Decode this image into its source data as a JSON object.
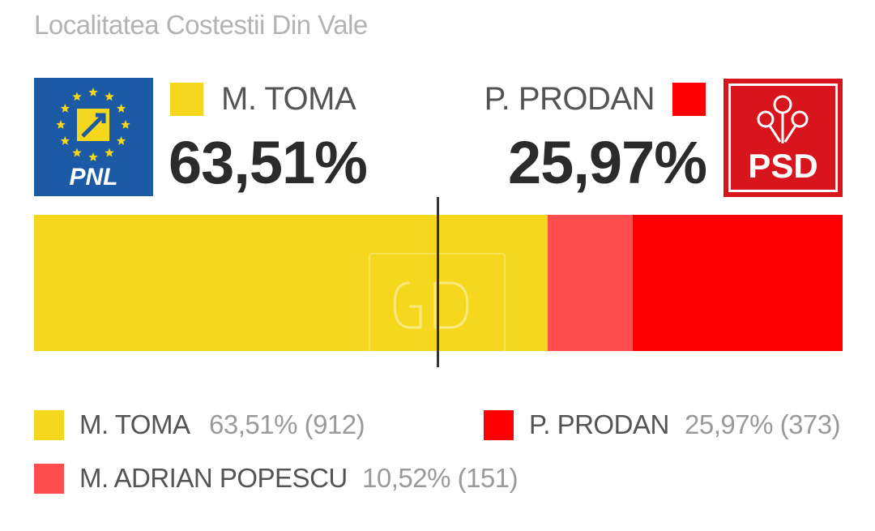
{
  "title": "Localitatea Costestii Din Vale",
  "logos": {
    "left": {
      "text": "PNL",
      "icon": "pnl-logo-icon"
    },
    "right": {
      "text": "PSD",
      "icon": "psd-rose-logo-icon"
    }
  },
  "header": {
    "left": {
      "name": "M. TOMA",
      "percent": "63,51%",
      "color": "#f5d81e"
    },
    "right": {
      "name": "P. PRODAN",
      "percent": "25,97%",
      "color": "#fe0000"
    }
  },
  "legend": [
    {
      "name": "M. TOMA",
      "value": "63,51% (912)",
      "color": "#f5d81e"
    },
    {
      "name": "P. PRODAN",
      "value": "25,97% (373)",
      "color": "#fe0000"
    },
    {
      "name": "M. ADRIAN POPESCU",
      "value": "10,52% (151)",
      "color": "#fe4d4f"
    }
  ],
  "chart_data": {
    "type": "bar",
    "orientation": "horizontal-stacked",
    "title": "Localitatea Costestii Din Vale",
    "categories": [
      "M. TOMA",
      "M. ADRIAN POPESCU",
      "P. PRODAN"
    ],
    "values": [
      63.51,
      10.52,
      25.97
    ],
    "votes": [
      912,
      151,
      373
    ],
    "colors": [
      "#f5d81e",
      "#fe4d4f",
      "#fe0000"
    ],
    "ylim": [
      0,
      100
    ],
    "reference_line": 50
  }
}
